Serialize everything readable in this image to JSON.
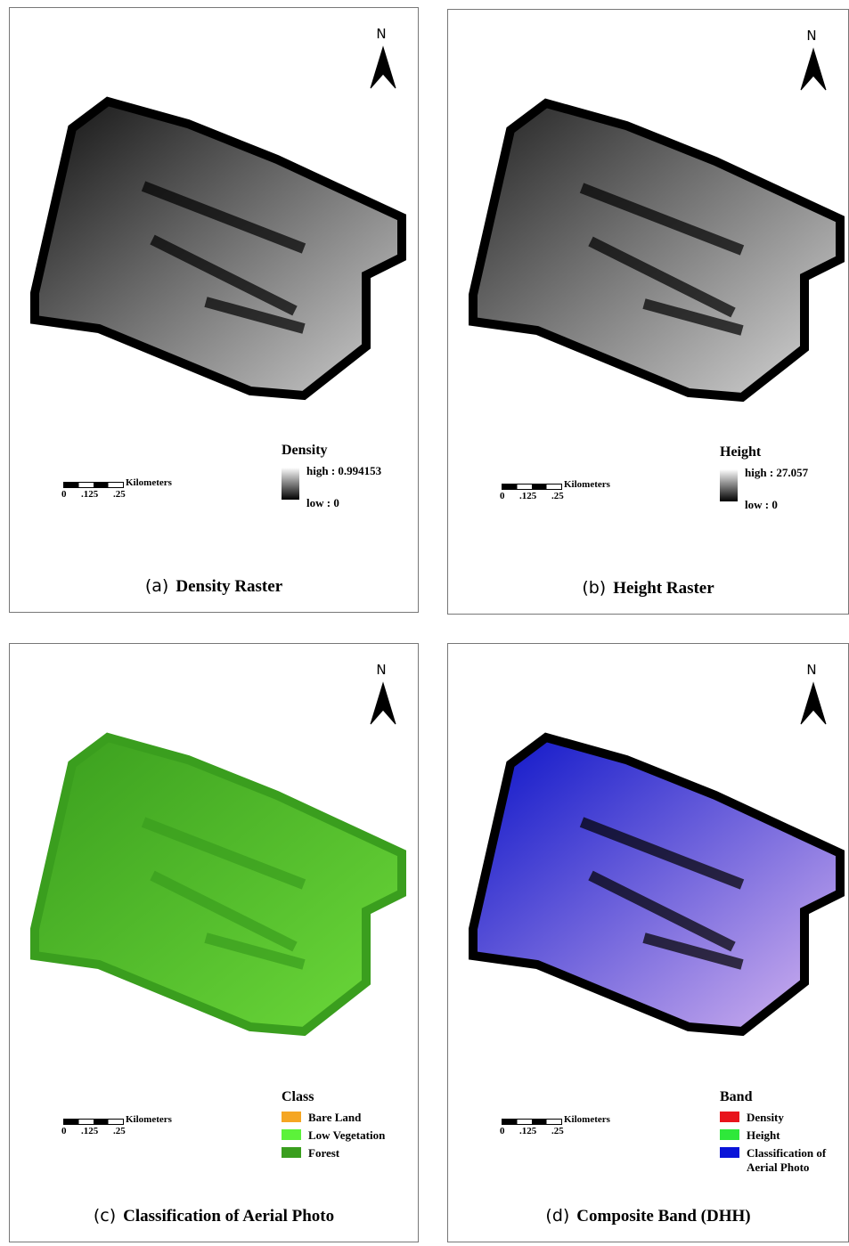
{
  "panels": [
    {
      "north": "N",
      "scale": {
        "unit": "Kilometers",
        "ticks": [
          "0",
          ".125",
          ".25"
        ]
      },
      "legend": {
        "title": "Density",
        "high": "high : 0.994153",
        "low": "low : 0"
      },
      "caption": {
        "label": "(a)",
        "title": "Density Raster"
      }
    },
    {
      "north": "N",
      "scale": {
        "unit": "Kilometers",
        "ticks": [
          "0",
          ".125",
          ".25"
        ]
      },
      "legend": {
        "title": "Height",
        "high": "high : 27.057",
        "low": "low : 0"
      },
      "caption": {
        "label": "(b)",
        "title": "Height Raster"
      }
    },
    {
      "north": "N",
      "scale": {
        "unit": "Kilometers",
        "ticks": [
          "0",
          ".125",
          ".25"
        ]
      },
      "legend": {
        "title": "Class",
        "items": [
          {
            "label": "Bare Land",
            "color": "#f5a623"
          },
          {
            "label": "Low Vegetation",
            "color": "#5cf23a"
          },
          {
            "label": "Forest",
            "color": "#3a9e1e"
          }
        ]
      },
      "caption": {
        "label": "(c)",
        "title": "Classification of Aerial Photo"
      }
    },
    {
      "north": "N",
      "scale": {
        "unit": "Kilometers",
        "ticks": [
          "0",
          ".125",
          ".25"
        ]
      },
      "legend": {
        "title": "Band",
        "items": [
          {
            "label": "Density",
            "color": "#e8141c"
          },
          {
            "label": "Height",
            "color": "#2ee83a"
          },
          {
            "label": "Classification of Aerial Photo",
            "color": "#0a14d8"
          }
        ]
      },
      "caption": {
        "label": "(d)",
        "title": "Composite Band (DHH)"
      }
    }
  ]
}
